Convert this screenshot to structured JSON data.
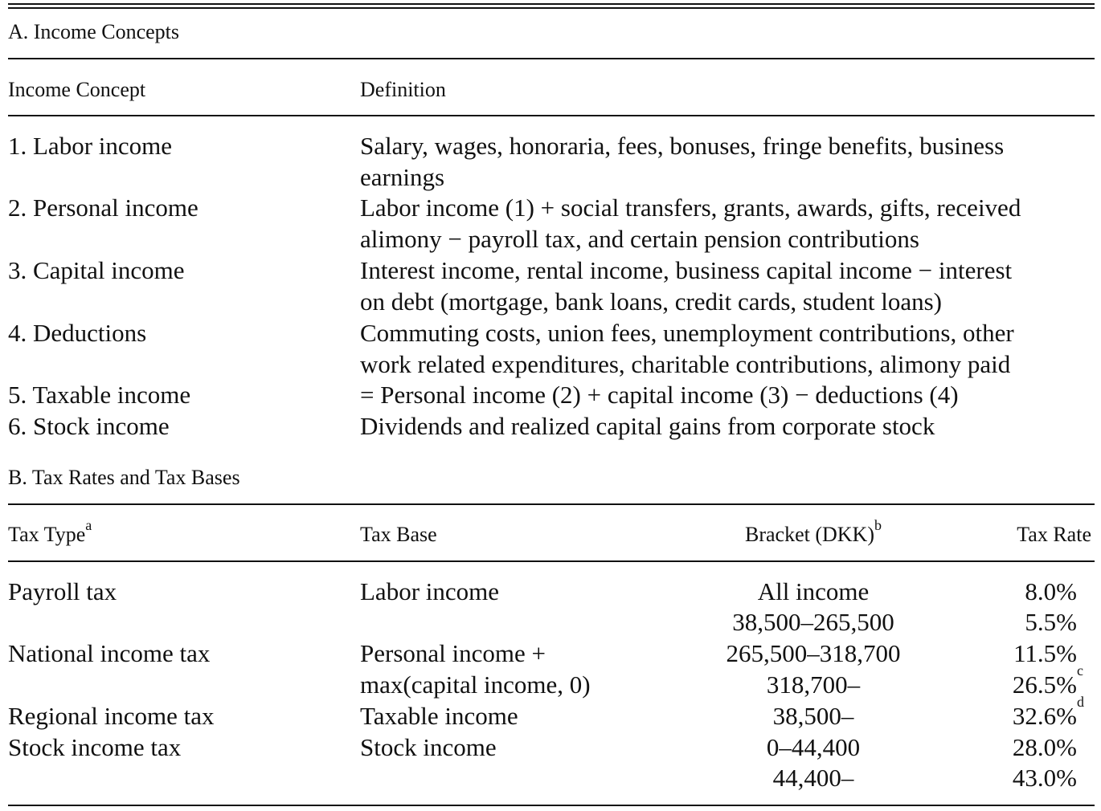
{
  "sectionA": {
    "title": "A. Income Concepts",
    "headers": [
      "Income Concept",
      "Definition"
    ],
    "rows": [
      {
        "concept": "1. Labor income",
        "definition": [
          "Salary, wages, honoraria, fees, bonuses, fringe benefits, business",
          "earnings"
        ]
      },
      {
        "concept": "2. Personal income",
        "definition": [
          "Labor income (1) + social transfers, grants, awards, gifts, received",
          "alimony − payroll tax, and certain pension contributions"
        ]
      },
      {
        "concept": "3. Capital income",
        "definition": [
          "Interest income, rental income, business capital income − interest",
          "on debt (mortgage, bank loans, credit cards, student loans)"
        ]
      },
      {
        "concept": "4. Deductions",
        "definition": [
          "Commuting costs, union fees, unemployment contributions, other",
          "work related expenditures, charitable contributions, alimony paid"
        ]
      },
      {
        "concept": "5. Taxable income",
        "definition": [
          "= Personal income (2) + capital income (3) − deductions (4)"
        ]
      },
      {
        "concept": "6. Stock income",
        "definition": [
          "Dividends and realized capital gains from corporate stock"
        ]
      }
    ]
  },
  "sectionB": {
    "title": "B. Tax Rates and Tax Bases",
    "headers": {
      "type": "Tax Type",
      "type_note": "a",
      "base": "Tax Base",
      "bracket": "Bracket (DKK)",
      "bracket_note": "b",
      "rate": "Tax Rate"
    },
    "rows": [
      {
        "type": "Payroll tax",
        "base": "Labor income",
        "bracket": "All income",
        "rate": "8.0%",
        "note": ""
      },
      {
        "type": "",
        "base": "",
        "bracket": "38,500–265,500",
        "rate": "5.5%",
        "note": ""
      },
      {
        "type": "National income tax",
        "base": "Personal income +",
        "bracket": "265,500–318,700",
        "rate": "11.5%",
        "note": ""
      },
      {
        "type": "",
        "base": "max(capital income, 0)",
        "bracket": "318,700–",
        "rate": "26.5%",
        "note": "c"
      },
      {
        "type": "Regional income tax",
        "base": "Taxable income",
        "bracket": "38,500–",
        "rate": "32.6%",
        "note": "d"
      },
      {
        "type": "Stock income tax",
        "base": "Stock income",
        "bracket": "0–44,400",
        "rate": "28.0%",
        "note": ""
      },
      {
        "type": "",
        "base": "",
        "bracket": "44,400–",
        "rate": "43.0%",
        "note": ""
      }
    ]
  }
}
